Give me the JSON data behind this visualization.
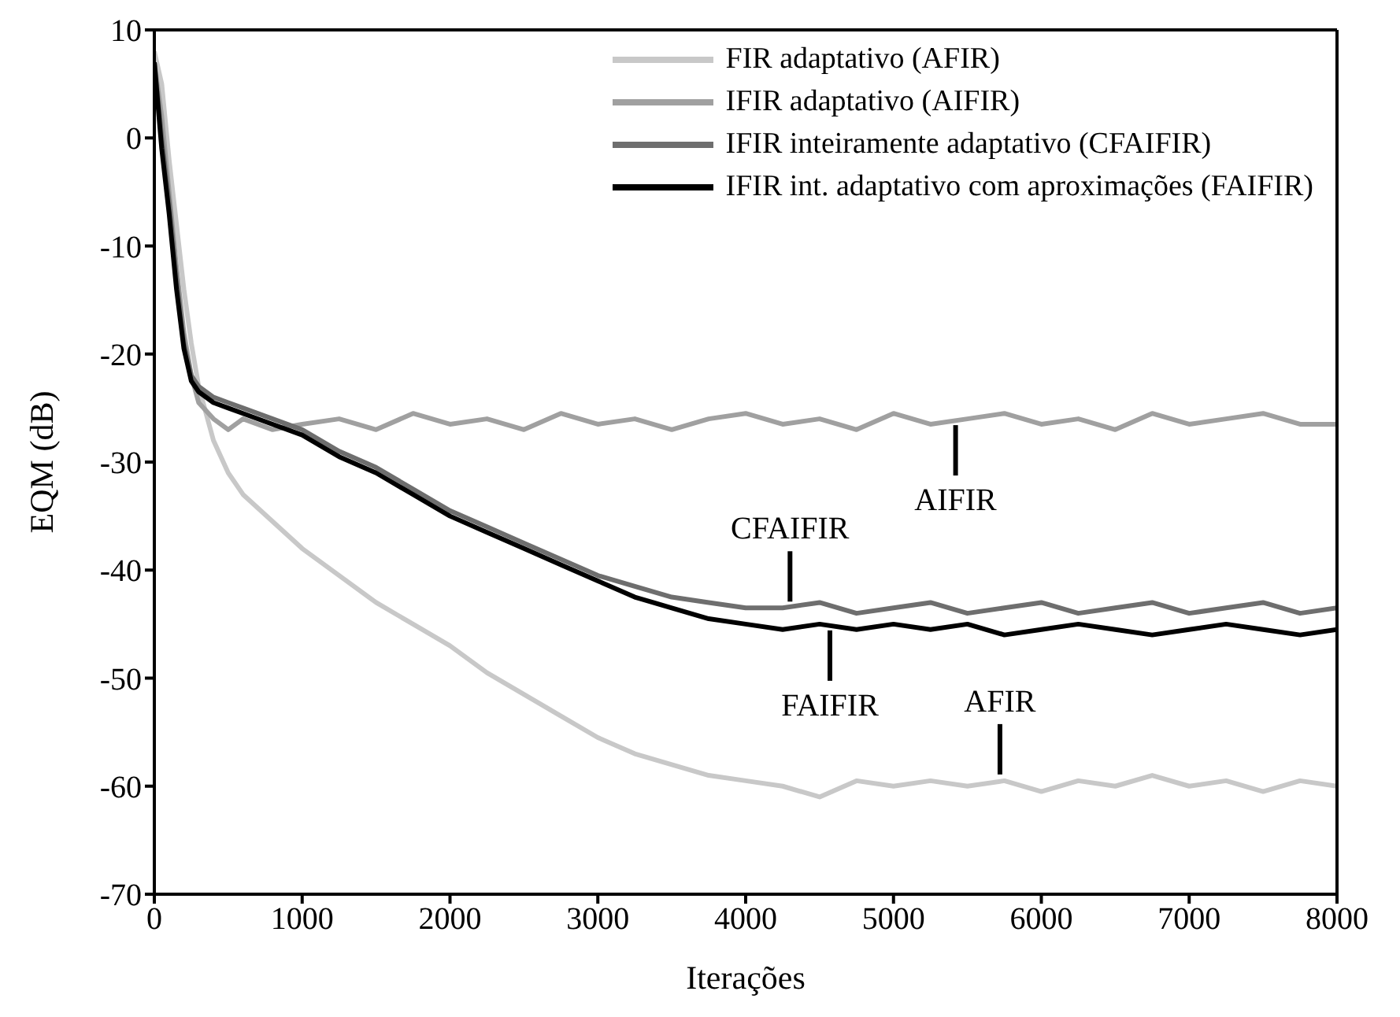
{
  "chart_data": {
    "type": "line",
    "xlabel": "Iterações",
    "ylabel": "EQM (dB)",
    "xlim": [
      0,
      8000
    ],
    "xticks": [
      0,
      1000,
      2000,
      3000,
      4000,
      5000,
      6000,
      7000,
      8000
    ],
    "ylim": [
      -70,
      10
    ],
    "yticks": [
      -70,
      -60,
      -50,
      -40,
      -30,
      -20,
      -10,
      0,
      10
    ],
    "grid": false,
    "legend": "top right",
    "marker": "none",
    "line_style": "solid",
    "x": [
      0,
      50,
      100,
      150,
      200,
      250,
      300,
      400,
      500,
      600,
      800,
      1000,
      1250,
      1500,
      1750,
      2000,
      2250,
      2500,
      2750,
      3000,
      3250,
      3500,
      3750,
      4000,
      4250,
      4500,
      4750,
      5000,
      5250,
      5500,
      5750,
      6000,
      6250,
      6500,
      6750,
      7000,
      7250,
      7500,
      7750,
      8000
    ],
    "series": [
      {
        "name": "FIR adaptativo (AFIR)",
        "color": "#c8c8c8",
        "values": [
          8,
          5,
          -2,
          -8,
          -14,
          -19,
          -23,
          -28,
          -31,
          -33,
          -35.5,
          -38,
          -40.5,
          -43,
          -45,
          -47,
          -49.5,
          -51.5,
          -53.5,
          -55.5,
          -57,
          -58,
          -59,
          -59.5,
          -60,
          -61,
          -59.5,
          -60,
          -59.5,
          -60,
          -59.5,
          -60.5,
          -59.5,
          -60,
          -59,
          -60,
          -59.5,
          -60.5,
          -59.5,
          -60
        ]
      },
      {
        "name": "IFIR adaptativo (AIFIR)",
        "color": "#a0a0a0",
        "values": [
          7,
          2,
          -5,
          -12,
          -18,
          -22,
          -24.5,
          -26,
          -27,
          -26,
          -27,
          -26.5,
          -26,
          -27,
          -25.5,
          -26.5,
          -26,
          -27,
          -25.5,
          -26.5,
          -26,
          -27,
          -26,
          -25.5,
          -26.5,
          -26,
          -27,
          -25.5,
          -26.5,
          -26,
          -25.5,
          -26.5,
          -26,
          -27,
          -25.5,
          -26.5,
          -26,
          -25.5,
          -26.5,
          -26.5
        ]
      },
      {
        "name": "IFIR inteiramente adaptativo (CFAIFIR)",
        "color": "#6e6e6e",
        "values": [
          7,
          0,
          -6,
          -13,
          -19,
          -22,
          -23,
          -24,
          -24.5,
          -25,
          -26,
          -27,
          -29,
          -30.5,
          -32.5,
          -34.5,
          -36,
          -37.5,
          -39,
          -40.5,
          -41.5,
          -42.5,
          -43,
          -43.5,
          -43.5,
          -43,
          -44,
          -43.5,
          -43,
          -44,
          -43.5,
          -43,
          -44,
          -43.5,
          -43,
          -44,
          -43.5,
          -43,
          -44,
          -43.5
        ]
      },
      {
        "name": "IFIR int. adaptativo com aproximações (FAIFIR)",
        "color": "#000000",
        "values": [
          7,
          -1,
          -7,
          -14,
          -19.5,
          -22.5,
          -23.5,
          -24.5,
          -25,
          -25.5,
          -26.5,
          -27.5,
          -29.5,
          -31,
          -33,
          -35,
          -36.5,
          -38,
          -39.5,
          -41,
          -42.5,
          -43.5,
          -44.5,
          -45,
          -45.5,
          -45,
          -45.5,
          -45,
          -45.5,
          -45,
          -46,
          -45.5,
          -45,
          -45.5,
          -46,
          -45.5,
          -45,
          -45.5,
          -46,
          -45.5
        ]
      }
    ],
    "annotations": [
      {
        "text": "AIFIR",
        "x": 5420,
        "y": -26
      },
      {
        "text": "CFAIFIR",
        "x": 4300,
        "y": -43.5
      },
      {
        "text": "FAIFIR",
        "x": 4570,
        "y": -45
      },
      {
        "text": "AFIR",
        "x": 5720,
        "y": -59.5
      }
    ]
  }
}
